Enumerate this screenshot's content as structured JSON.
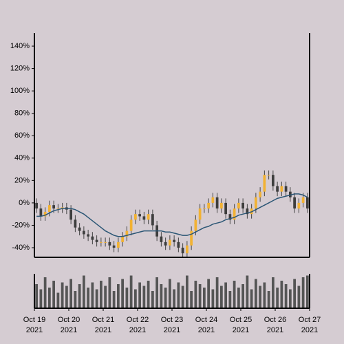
{
  "chart_data": {
    "type": "candlestick",
    "open": [
      0,
      -5,
      -12,
      -8,
      -2,
      -5,
      -5,
      -4,
      -6,
      -15,
      -22,
      -25,
      -28,
      -30,
      -33,
      -35,
      -35,
      -35,
      -38,
      -40,
      -35,
      -30,
      -25,
      -15,
      -10,
      -12,
      -15,
      -10,
      -20,
      -30,
      -35,
      -38,
      -33,
      -35,
      -40,
      -45,
      -38,
      -25,
      -15,
      -5,
      -5,
      0,
      5,
      -5,
      0,
      -10,
      -15,
      -5,
      0,
      -5,
      -10,
      -5,
      5,
      10,
      25,
      25,
      15,
      10,
      15,
      10,
      5,
      -5,
      0,
      5
    ],
    "high": [
      4,
      -1,
      -4,
      2,
      2,
      -1,
      0,
      0,
      -2,
      -11,
      -18,
      -21,
      -24,
      -26,
      -29,
      -31,
      -31,
      -31,
      -34,
      -31,
      -26,
      -21,
      -11,
      -6,
      -6,
      -8,
      -6,
      -6,
      -16,
      -26,
      -31,
      -29,
      -29,
      -31,
      -36,
      -34,
      -21,
      -11,
      -1,
      -1,
      4,
      9,
      9,
      4,
      4,
      -6,
      -1,
      4,
      4,
      -1,
      -1,
      9,
      14,
      29,
      29,
      29,
      19,
      19,
      19,
      14,
      9,
      4,
      9,
      9
    ],
    "low": [
      -9,
      -16,
      -16,
      -12,
      -9,
      -9,
      -9,
      -10,
      -19,
      -26,
      -29,
      -32,
      -34,
      -37,
      -39,
      -39,
      -39,
      -42,
      -44,
      -44,
      -39,
      -34,
      -29,
      -19,
      -16,
      -19,
      -19,
      -24,
      -34,
      -39,
      -42,
      -42,
      -39,
      -44,
      -48,
      -48,
      -42,
      -29,
      -19,
      -9,
      -9,
      -4,
      -9,
      -9,
      -14,
      -19,
      -19,
      -9,
      -9,
      -14,
      -14,
      -9,
      1,
      6,
      21,
      11,
      6,
      6,
      6,
      1,
      -9,
      -9,
      -4,
      -9
    ],
    "close": [
      -5,
      -12,
      -8,
      -2,
      -5,
      -5,
      -4,
      -6,
      -15,
      -22,
      -25,
      -28,
      -30,
      -33,
      -35,
      -35,
      -35,
      -38,
      -40,
      -35,
      -30,
      -25,
      -15,
      -10,
      -12,
      -15,
      -10,
      -20,
      -30,
      -35,
      -38,
      -33,
      -35,
      -40,
      -45,
      -38,
      -25,
      -15,
      -5,
      -5,
      0,
      5,
      -5,
      0,
      -10,
      -15,
      -5,
      0,
      -5,
      -10,
      -5,
      5,
      10,
      25,
      25,
      15,
      10,
      15,
      10,
      5,
      -5,
      0,
      5,
      -5
    ],
    "moving_average": [
      -12,
      -12,
      -11,
      -9,
      -7,
      -6,
      -5,
      -5,
      -5,
      -6,
      -8,
      -10,
      -13,
      -16,
      -19,
      -22,
      -25,
      -27,
      -29,
      -30,
      -30,
      -29,
      -28,
      -27,
      -26,
      -25,
      -25,
      -25,
      -25,
      -25,
      -26,
      -26,
      -27,
      -28,
      -29,
      -29,
      -28,
      -26,
      -24,
      -22,
      -21,
      -19,
      -18,
      -17,
      -15,
      -14,
      -13,
      -11,
      -10,
      -9,
      -8,
      -6,
      -4,
      -2,
      0,
      2,
      4,
      5,
      6,
      7,
      8,
      8,
      7,
      5
    ],
    "volume": [
      70,
      55,
      90,
      60,
      80,
      45,
      75,
      65,
      85,
      50,
      70,
      95,
      60,
      75,
      55,
      80,
      65,
      90,
      50,
      70,
      85,
      60,
      95,
      55,
      75,
      65,
      80,
      50,
      90,
      70,
      60,
      85,
      55,
      75,
      65,
      95,
      50,
      80,
      70,
      60,
      85,
      55,
      90,
      65,
      75,
      50,
      80,
      60,
      70,
      95,
      55,
      85,
      65,
      75,
      50,
      90,
      60,
      80,
      70,
      55,
      85,
      65,
      90,
      95
    ],
    "up_color": "#f2b233",
    "down_color": "#3d3d3d",
    "ma_color": "#2b5675",
    "volume_color": "#555555",
    "xlim": [
      0,
      64
    ],
    "ylim": [
      -48.6,
      151.7
    ],
    "vlim": [
      0,
      100
    ],
    "xticks": [
      {
        "value": 0,
        "label": [
          "Oct 19",
          "2021"
        ]
      },
      {
        "value": 8,
        "label": [
          "Oct 20",
          "2021"
        ]
      },
      {
        "value": 16,
        "label": [
          "Oct 21",
          "2021"
        ]
      },
      {
        "value": 24,
        "label": [
          "Oct 22",
          "2021"
        ]
      },
      {
        "value": 32,
        "label": [
          "Oct 23",
          "2021"
        ]
      },
      {
        "value": 40,
        "label": [
          "Oct 24",
          "2021"
        ]
      },
      {
        "value": 48,
        "label": [
          "Oct 25",
          "2021"
        ]
      },
      {
        "value": 56,
        "label": [
          "Oct 26",
          "2021"
        ]
      },
      {
        "value": 64,
        "label": [
          "Oct 27",
          "2021"
        ]
      }
    ],
    "yticks": [
      {
        "value": -40,
        "label": "-40%"
      },
      {
        "value": -20,
        "label": "-20%"
      },
      {
        "value": 0,
        "label": "0%"
      },
      {
        "value": 20,
        "label": "20%"
      },
      {
        "value": 40,
        "label": "40%"
      },
      {
        "value": 60,
        "label": "60%"
      },
      {
        "value": 80,
        "label": "80%"
      },
      {
        "value": 100,
        "label": "100%"
      },
      {
        "value": 120,
        "label": "120%"
      },
      {
        "value": 140,
        "label": "140%"
      }
    ]
  }
}
